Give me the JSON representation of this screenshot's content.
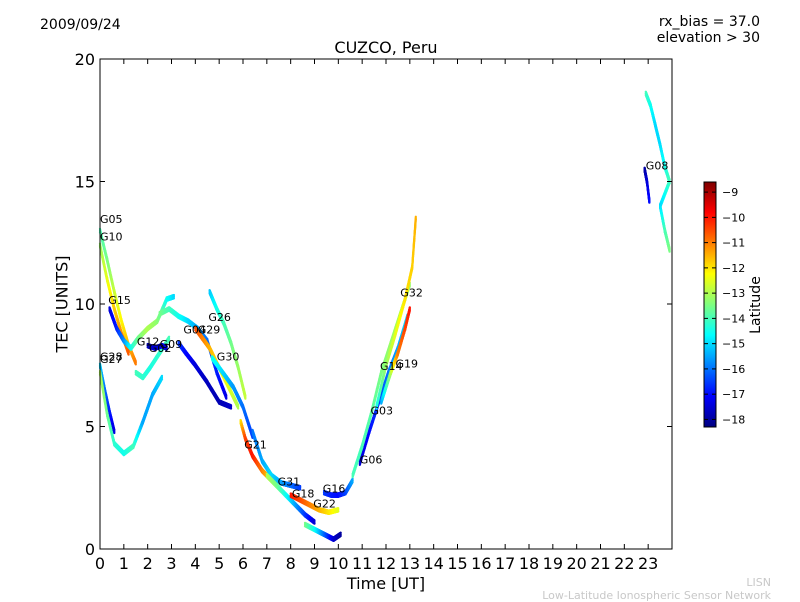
{
  "header": {
    "date": "2009/09/24",
    "rx_bias": "rx_bias = 37.0",
    "elevation": "elevation > 30"
  },
  "footer": {
    "org_short": "LISN",
    "org_long": "Low-Latitude Ionospheric Sensor Network"
  },
  "chart_data": {
    "type": "scatter",
    "title": "CUZCO, Peru",
    "xlabel": "Time [UT]",
    "ylabel": "TEC [UNITS]",
    "xlim": [
      0,
      24
    ],
    "ylim": [
      0,
      20
    ],
    "xticks": [
      0,
      1,
      2,
      3,
      4,
      5,
      6,
      7,
      8,
      9,
      10,
      11,
      12,
      13,
      14,
      15,
      16,
      17,
      18,
      19,
      20,
      21,
      22,
      23
    ],
    "yticks": [
      0,
      5,
      10,
      15,
      20
    ],
    "grid": false,
    "colorbar": {
      "label": "Latitude",
      "range": [
        -18.3,
        -8.6
      ],
      "ticks": [
        -9,
        -10,
        -11,
        -12,
        -13,
        -14,
        -15,
        -16,
        -17,
        -18
      ],
      "colormap": [
        "#00007f",
        "#0000ff",
        "#007fff",
        "#00ffff",
        "#7fff7f",
        "#ffff00",
        "#ff7f00",
        "#ff0000",
        "#7f0000"
      ]
    },
    "series": [
      {
        "name": "G05",
        "label": {
          "x": 0.0,
          "y": 13.3
        },
        "points": [
          [
            0.0,
            13.0,
            -14.0
          ],
          [
            0.3,
            11.8,
            -13.5
          ],
          [
            0.6,
            10.5,
            -12.8
          ],
          [
            0.9,
            9.3,
            -12.2
          ],
          [
            1.2,
            8.3,
            -11.6
          ],
          [
            1.5,
            7.6,
            -11.0
          ]
        ]
      },
      {
        "name": "G10",
        "label": {
          "x": 0.0,
          "y": 12.6
        },
        "points": [
          [
            0.0,
            12.4,
            -13.2
          ],
          [
            0.3,
            11.0,
            -12.5
          ],
          [
            0.6,
            9.8,
            -11.8
          ],
          [
            0.9,
            8.8,
            -11.2
          ],
          [
            1.2,
            8.0,
            -10.7
          ]
        ]
      },
      {
        "name": "G15",
        "label": {
          "x": 0.35,
          "y": 10.0
        },
        "points": [
          [
            0.4,
            9.8,
            -17.5
          ],
          [
            0.7,
            9.0,
            -16.8
          ],
          [
            1.0,
            8.5,
            -15.8
          ],
          [
            1.3,
            8.2,
            -14.5
          ],
          [
            1.6,
            8.6,
            -13.6
          ],
          [
            2.0,
            9.0,
            -13.0
          ],
          [
            2.4,
            9.3,
            -13.3
          ],
          [
            2.8,
            10.2,
            -14.5
          ],
          [
            3.1,
            10.3,
            -15.0
          ]
        ]
      },
      {
        "name": "G27",
        "label": {
          "x": 0.0,
          "y": 7.6
        },
        "points": [
          [
            0.0,
            7.5,
            -15.0
          ],
          [
            0.2,
            6.5,
            -16.0
          ],
          [
            0.4,
            5.6,
            -16.8
          ],
          [
            0.6,
            4.8,
            -17.4
          ]
        ]
      },
      {
        "name": "G28",
        "label": {
          "x": 0.0,
          "y": 7.7
        },
        "points": [
          [
            0.0,
            7.2,
            -13.0
          ],
          [
            0.3,
            5.5,
            -13.6
          ],
          [
            0.6,
            4.3,
            -14.2
          ],
          [
            1.0,
            3.9,
            -14.5
          ],
          [
            1.4,
            4.2,
            -14.0
          ],
          [
            1.8,
            5.2,
            -15.5
          ],
          [
            2.2,
            6.3,
            -15.5
          ],
          [
            2.6,
            7.0,
            -15.0
          ]
        ]
      },
      {
        "name": "G12",
        "label": {
          "x": 1.55,
          "y": 8.3
        },
        "points": [
          [
            1.5,
            7.2,
            -14.0
          ],
          [
            1.8,
            7.0,
            -14.2
          ],
          [
            2.1,
            7.4,
            -14.4
          ],
          [
            2.5,
            8.0,
            -14.2
          ],
          [
            2.9,
            8.6,
            -14.0
          ]
        ]
      },
      {
        "name": "G02",
        "label": {
          "x": 2.05,
          "y": 8.05
        },
        "points": [
          [
            2.0,
            8.3,
            -17.8
          ],
          [
            2.3,
            8.2,
            -17.5
          ],
          [
            2.6,
            8.3,
            -17.3
          ],
          [
            2.8,
            8.2,
            -17.4
          ]
        ]
      },
      {
        "name": "G09",
        "label": {
          "x": 2.5,
          "y": 8.2
        },
        "points": [
          [
            2.5,
            9.6,
            -13.5
          ],
          [
            2.9,
            9.8,
            -14.0
          ],
          [
            3.3,
            9.5,
            -14.5
          ],
          [
            3.7,
            9.3,
            -15.0
          ],
          [
            4.1,
            9.0,
            -15.5
          ],
          [
            4.5,
            8.5,
            -16.0
          ],
          [
            4.9,
            7.2,
            -16.8
          ],
          [
            5.3,
            6.2,
            -17.3
          ]
        ]
      },
      {
        "name": "G04",
        "label": {
          "x": 3.5,
          "y": 8.8
        },
        "points": [
          [
            3.3,
            8.4,
            -16.5
          ],
          [
            3.6,
            8.0,
            -17.0
          ],
          [
            4.0,
            7.5,
            -17.4
          ],
          [
            4.5,
            6.8,
            -17.7
          ],
          [
            5.0,
            6.0,
            -17.8
          ],
          [
            5.5,
            5.8,
            -17.6
          ]
        ]
      },
      {
        "name": "G29",
        "label": {
          "x": 4.1,
          "y": 8.8
        },
        "points": [
          [
            4.0,
            9.0,
            -10.5
          ],
          [
            4.3,
            8.6,
            -11.0
          ],
          [
            4.6,
            8.2,
            -11.5
          ],
          [
            5.0,
            7.4,
            -12.0
          ],
          [
            5.4,
            6.6,
            -12.5
          ],
          [
            5.8,
            5.8,
            -13.0
          ]
        ]
      },
      {
        "name": "G26",
        "label": {
          "x": 4.55,
          "y": 9.3
        },
        "points": [
          [
            4.6,
            10.5,
            -15.2
          ],
          [
            4.9,
            9.8,
            -14.5
          ],
          [
            5.2,
            9.2,
            -14.0
          ],
          [
            5.5,
            8.4,
            -13.6
          ],
          [
            5.8,
            7.4,
            -13.2
          ],
          [
            6.1,
            6.2,
            -12.8
          ]
        ]
      },
      {
        "name": "G30",
        "label": {
          "x": 4.9,
          "y": 7.7
        },
        "points": [
          [
            4.7,
            7.8,
            -14.5
          ],
          [
            5.0,
            7.4,
            -14.8
          ],
          [
            5.3,
            7.0,
            -15.2
          ],
          [
            5.6,
            6.6,
            -15.6
          ],
          [
            6.0,
            5.8,
            -16.0
          ],
          [
            6.4,
            4.6,
            -16.5
          ]
        ]
      },
      {
        "name": "G21",
        "label": {
          "x": 6.05,
          "y": 4.1
        },
        "points": [
          [
            5.9,
            5.2,
            -12.0
          ],
          [
            6.1,
            4.5,
            -10.5
          ],
          [
            6.4,
            3.8,
            -10.0
          ],
          [
            6.8,
            3.2,
            -11.0
          ],
          [
            7.2,
            2.8,
            -12.0
          ],
          [
            7.6,
            2.4,
            -13.0
          ]
        ]
      },
      {
        "name": "G31",
        "label": {
          "x": 7.45,
          "y": 2.6
        },
        "points": [
          [
            6.4,
            4.8,
            -16.0
          ],
          [
            6.8,
            3.6,
            -15.5
          ],
          [
            7.2,
            3.0,
            -15.0
          ],
          [
            7.6,
            2.7,
            -15.5
          ],
          [
            8.0,
            2.6,
            -16.0
          ],
          [
            8.4,
            2.5,
            -16.5
          ]
        ]
      },
      {
        "name": "G18",
        "label": {
          "x": 8.05,
          "y": 2.1
        },
        "points": [
          [
            7.0,
            3.0,
            -13.0
          ],
          [
            7.4,
            2.6,
            -13.5
          ],
          [
            7.8,
            2.2,
            -14.5
          ],
          [
            8.2,
            1.8,
            -15.5
          ],
          [
            8.6,
            1.4,
            -16.5
          ],
          [
            9.0,
            1.1,
            -17.5
          ]
        ]
      },
      {
        "name": "G22",
        "label": {
          "x": 8.95,
          "y": 1.7
        },
        "points": [
          [
            8.0,
            2.2,
            -10.0
          ],
          [
            8.4,
            2.0,
            -10.5
          ],
          [
            8.8,
            1.8,
            -11.0
          ],
          [
            9.2,
            1.6,
            -11.5
          ],
          [
            9.6,
            1.5,
            -12.0
          ],
          [
            10.0,
            1.6,
            -12.5
          ]
        ]
      },
      {
        "name": "G16",
        "label": {
          "x": 9.35,
          "y": 2.3
        },
        "points": [
          [
            9.4,
            2.3,
            -16.5
          ],
          [
            9.7,
            2.2,
            -16.8
          ],
          [
            10.0,
            2.2,
            -17.0
          ],
          [
            10.3,
            2.3,
            -16.5
          ],
          [
            10.6,
            2.8,
            -15.5
          ]
        ]
      },
      {
        "name": "G06",
        "label": {
          "x": 10.9,
          "y": 3.5
        },
        "points": [
          [
            8.6,
            1.0,
            -13.5
          ],
          [
            9.0,
            0.8,
            -14.5
          ],
          [
            9.4,
            0.6,
            -16.0
          ],
          [
            9.8,
            0.4,
            -17.5
          ],
          [
            10.1,
            0.6,
            -18.0
          ]
        ]
      },
      {
        "name": "G03",
        "label": {
          "x": 11.35,
          "y": 5.5
        },
        "points": [
          [
            10.9,
            3.5,
            -17.5
          ],
          [
            11.3,
            4.8,
            -17.0
          ],
          [
            11.7,
            6.0,
            -16.5
          ],
          [
            12.1,
            7.2,
            -16.0
          ],
          [
            12.5,
            8.2,
            -15.5
          ],
          [
            12.9,
            9.5,
            -15.0
          ]
        ]
      },
      {
        "name": "G14",
        "label": {
          "x": 11.75,
          "y": 7.3
        },
        "points": [
          [
            10.6,
            3.0,
            -14.0
          ],
          [
            11.0,
            4.2,
            -14.0
          ],
          [
            11.4,
            5.6,
            -13.8
          ],
          [
            11.8,
            7.2,
            -13.5
          ],
          [
            12.2,
            8.4,
            -13.2
          ],
          [
            12.6,
            9.6,
            -13.0
          ],
          [
            13.0,
            10.8,
            -13.2
          ]
        ]
      },
      {
        "name": "G19",
        "label": {
          "x": 12.4,
          "y": 7.4
        },
        "points": [
          [
            11.8,
            6.0,
            -15.5
          ],
          [
            12.2,
            7.2,
            -13.0
          ],
          [
            12.5,
            8.0,
            -11.0
          ],
          [
            12.8,
            9.0,
            -10.5
          ],
          [
            13.0,
            9.8,
            -10.0
          ]
        ]
      },
      {
        "name": "G32",
        "label": {
          "x": 12.6,
          "y": 10.3
        },
        "points": [
          [
            11.6,
            5.8,
            -14.5
          ],
          [
            12.0,
            7.5,
            -13.2
          ],
          [
            12.4,
            8.8,
            -12.5
          ],
          [
            12.8,
            10.2,
            -12.0
          ],
          [
            13.1,
            11.5,
            -11.8
          ],
          [
            13.25,
            13.5,
            -11.5
          ]
        ]
      },
      {
        "name": "G08",
        "label": {
          "x": 22.9,
          "y": 15.5
        },
        "points": [
          [
            22.85,
            15.5,
            -18.0
          ],
          [
            22.95,
            15.0,
            -17.5
          ],
          [
            23.05,
            14.2,
            -17.0
          ],
          [
            22.9,
            18.6,
            -14.0
          ],
          [
            23.1,
            18.1,
            -14.5
          ],
          [
            23.3,
            17.3,
            -15.0
          ],
          [
            23.5,
            16.5,
            -15.0
          ],
          [
            23.7,
            15.6,
            -14.5
          ],
          [
            23.9,
            15.0,
            -14.0
          ],
          [
            23.5,
            14.0,
            -15.0
          ],
          [
            23.7,
            13.0,
            -14.0
          ],
          [
            23.9,
            12.2,
            -13.5
          ]
        ]
      }
    ]
  }
}
